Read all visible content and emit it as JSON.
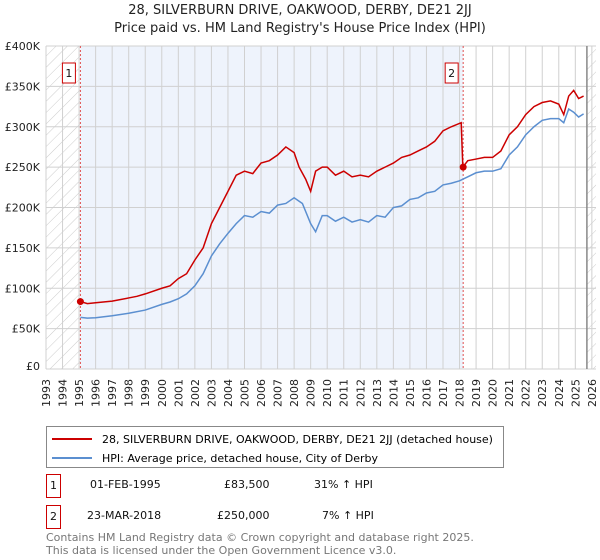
{
  "chart_data": {
    "type": "line",
    "title": "28, SILVERBURN DRIVE, OAKWOOD, DERBY, DE21 2JJ",
    "subtitle": "Price paid vs. HM Land Registry's House Price Index (HPI)",
    "xlim": [
      1993,
      2026.25
    ],
    "ylim": [
      0,
      400000
    ],
    "yticks": [
      0,
      50000,
      100000,
      150000,
      200000,
      250000,
      300000,
      350000,
      400000
    ],
    "ytick_labels": [
      "£0",
      "£50K",
      "£100K",
      "£150K",
      "£200K",
      "£250K",
      "£300K",
      "£350K",
      "£400K"
    ],
    "xticks": [
      "1993",
      "1994",
      "1995",
      "1996",
      "1997",
      "1998",
      "1999",
      "2000",
      "2001",
      "2002",
      "2003",
      "2004",
      "2005",
      "2006",
      "2007",
      "2008",
      "2009",
      "2010",
      "2011",
      "2012",
      "2013",
      "2014",
      "2015",
      "2016",
      "2017",
      "2018",
      "2019",
      "2020",
      "2021",
      "2022",
      "2023",
      "2024",
      "2025",
      "2026"
    ],
    "grid": true,
    "shaded_between": [
      1995.08,
      2018.22
    ],
    "hatched_before": 1995.08,
    "hatched_after": 2025.7,
    "series": [
      {
        "name": "28, SILVERBURN DRIVE, OAKWOOD, DERBY, DE21 2JJ (detached house)",
        "color": "#cc0000",
        "x": [
          1995.08,
          1995.5,
          1996,
          1997,
          1998,
          1998.5,
          1999,
          2000,
          2000.5,
          2001,
          2001.5,
          2002,
          2002.5,
          2003,
          2003.5,
          2004,
          2004.5,
          2005,
          2005.5,
          2006,
          2006.5,
          2007,
          2007.5,
          2008,
          2008.3,
          2008.7,
          2009,
          2009.3,
          2009.7,
          2010,
          2010.5,
          2011,
          2011.5,
          2012,
          2012.5,
          2013,
          2013.5,
          2014,
          2014.5,
          2015,
          2015.5,
          2016,
          2016.5,
          2017,
          2017.5,
          2018.1,
          2018.2,
          2018.5,
          2019,
          2019.5,
          2020,
          2020.5,
          2021,
          2021.5,
          2022,
          2022.5,
          2023,
          2023.5,
          2024,
          2024.3,
          2024.6,
          2024.9,
          2025.2,
          2025.5
        ],
        "y": [
          83500,
          81000,
          82000,
          84000,
          88000,
          90000,
          93000,
          100000,
          103000,
          112000,
          118000,
          135000,
          150000,
          180000,
          200000,
          220000,
          240000,
          245000,
          242000,
          255000,
          258000,
          265000,
          275000,
          268000,
          250000,
          235000,
          220000,
          245000,
          250000,
          250000,
          240000,
          245000,
          238000,
          240000,
          238000,
          245000,
          250000,
          255000,
          262000,
          265000,
          270000,
          275000,
          282000,
          295000,
          300000,
          305000,
          250000,
          258000,
          260000,
          262000,
          262000,
          270000,
          290000,
          300000,
          315000,
          325000,
          330000,
          332000,
          328000,
          315000,
          338000,
          345000,
          335000,
          338000
        ]
      },
      {
        "name": "HPI: Average price, detached house, City of Derby",
        "color": "#5b8fd0",
        "x": [
          1995.08,
          1995.5,
          1996,
          1997,
          1998,
          1999,
          2000,
          2000.5,
          2001,
          2001.5,
          2002,
          2002.5,
          2003,
          2003.5,
          2004,
          2004.5,
          2005,
          2005.5,
          2006,
          2006.5,
          2007,
          2007.5,
          2008,
          2008.5,
          2009,
          2009.3,
          2009.7,
          2010,
          2010.5,
          2011,
          2011.5,
          2012,
          2012.5,
          2013,
          2013.5,
          2014,
          2014.5,
          2015,
          2015.5,
          2016,
          2016.5,
          2017,
          2017.5,
          2018,
          2018.5,
          2019,
          2019.5,
          2020,
          2020.5,
          2021,
          2021.5,
          2022,
          2022.5,
          2023,
          2023.5,
          2024,
          2024.3,
          2024.6,
          2024.9,
          2025.2,
          2025.5
        ],
        "y": [
          64000,
          63000,
          63500,
          66000,
          69000,
          73000,
          80000,
          83000,
          87000,
          93000,
          103000,
          118000,
          140000,
          155000,
          168000,
          180000,
          190000,
          188000,
          195000,
          193000,
          203000,
          205000,
          212000,
          205000,
          180000,
          170000,
          190000,
          190000,
          183000,
          188000,
          182000,
          185000,
          182000,
          190000,
          188000,
          200000,
          202000,
          210000,
          212000,
          218000,
          220000,
          228000,
          230000,
          233000,
          238000,
          243000,
          245000,
          245000,
          248000,
          265000,
          275000,
          290000,
          300000,
          308000,
          310000,
          310000,
          305000,
          322000,
          318000,
          312000,
          316000
        ]
      }
    ],
    "markers": [
      {
        "label": "1",
        "x": 1995.08,
        "y": 83500
      },
      {
        "label": "2",
        "x": 2018.22,
        "y": 250000
      }
    ]
  },
  "legend": {
    "items": [
      "28, SILVERBURN DRIVE, OAKWOOD, DERBY, DE21 2JJ (detached house)",
      "HPI: Average price, detached house, City of Derby"
    ]
  },
  "transactions": [
    {
      "id": "1",
      "date": "01-FEB-1995",
      "price": "£83,500",
      "hpi": "31% ↑ HPI"
    },
    {
      "id": "2",
      "date": "23-MAR-2018",
      "price": "£250,000",
      "hpi": "7% ↑ HPI"
    }
  ],
  "footer": {
    "line1": "Contains HM Land Registry data © Crown copyright and database right 2025.",
    "line2": "This data is licensed under the Open Government Licence v3.0."
  }
}
